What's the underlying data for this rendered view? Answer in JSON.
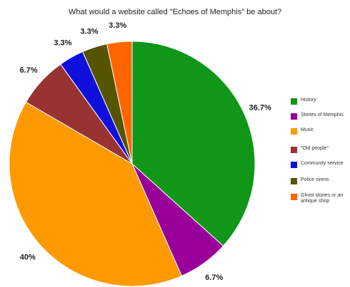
{
  "chart_data": {
    "type": "pie",
    "title": "What would a website called \"Echoes of Memphis\" be about?",
    "slices": [
      {
        "label": "History",
        "value": 36.7,
        "data_label": "36.7%",
        "color": "#109618"
      },
      {
        "label": "Stories of Memphis",
        "value": 6.7,
        "data_label": "6.7%",
        "color": "#990099"
      },
      {
        "label": "Music",
        "value": 40,
        "data_label": "40%",
        "color": "#FF9900"
      },
      {
        "label": "\"Old people\"",
        "value": 6.7,
        "data_label": "6.7%",
        "color": "#993333"
      },
      {
        "label": "Community service",
        "value": 3.3,
        "data_label": "3.3%",
        "color": "#1010DD"
      },
      {
        "label": "Police sirens",
        "value": 3.3,
        "data_label": "3.3%",
        "color": "#555500"
      },
      {
        "label": "Ghost stories or an antique shop",
        "value": 3.3,
        "data_label": "3.3%",
        "color": "#FF6600"
      }
    ],
    "legend_position": "right"
  }
}
